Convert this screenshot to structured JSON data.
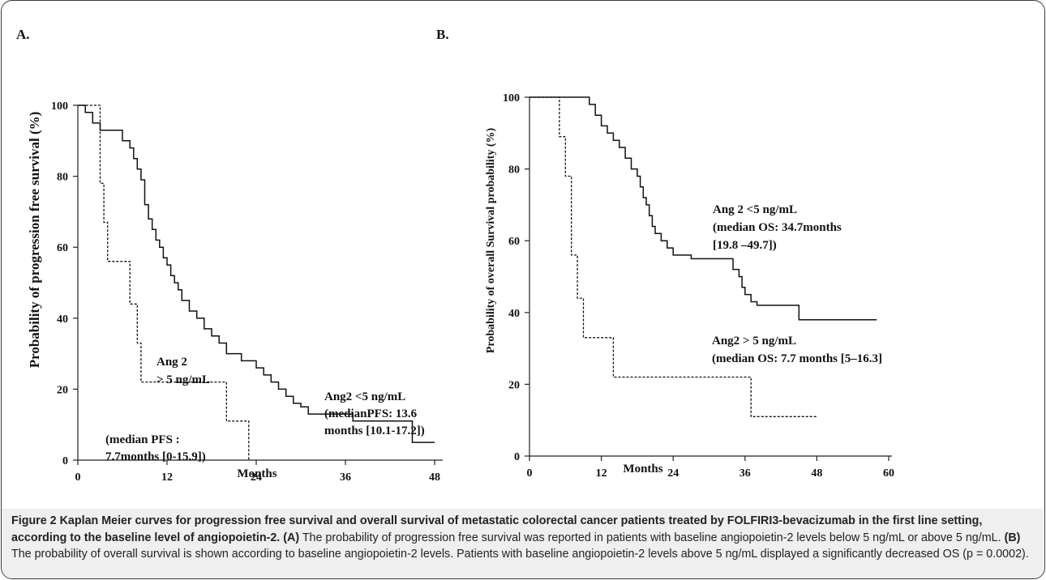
{
  "figure": {
    "caption_title": "Figure 2 Kaplan Meier curves for progression free survival and overall survival of metastatic colorectal cancer patients treated by FOLFIRI3-bevacizumab in the first line setting, according to the baseline level of angiopoietin-2.",
    "caption_a_label": "(A)",
    "caption_a_text": "The probability of progression free survival was reported in patients with baseline angiopoietin-2 levels below 5 ng/mL or above 5 ng/mL.",
    "caption_b_label": "(B)",
    "caption_b_text": "The probability of overall survival is shown according to baseline angiopoietin-2 levels. Patients with baseline angiopoietin-2 levels above 5 ng/mL displayed a significantly decreased OS (p = 0.0002)."
  },
  "chart_data": [
    {
      "type": "line",
      "panel_label": "A.",
      "xlabel": "Months",
      "ylabel": "Probability of progression free survival (%)",
      "xlim": [
        0,
        48
      ],
      "ylim": [
        0,
        100
      ],
      "xticks": [
        0,
        12,
        24,
        36,
        48
      ],
      "yticks": [
        0,
        20,
        40,
        60,
        80,
        100
      ],
      "step": true,
      "series": [
        {
          "style": "solid",
          "x": [
            0,
            1,
            2,
            3,
            5,
            6,
            7,
            7.5,
            8,
            8.5,
            9,
            9.5,
            10,
            10.5,
            11,
            11.5,
            12,
            12.5,
            13,
            13.5,
            14,
            15,
            16,
            17,
            18,
            19,
            20,
            22,
            24,
            25,
            26,
            27,
            28,
            29,
            30,
            31,
            33,
            37,
            45,
            48
          ],
          "y": [
            100,
            98,
            95,
            93,
            93,
            90,
            88,
            85,
            82,
            79,
            72,
            68,
            65,
            62,
            60,
            57,
            55,
            52,
            50,
            48,
            45,
            42,
            40,
            37,
            35,
            33,
            30,
            28,
            26,
            24,
            22,
            20,
            18,
            16,
            15,
            13,
            13,
            11,
            5,
            5
          ]
        },
        {
          "style": "dashed",
          "x": [
            0,
            2.5,
            3,
            3.5,
            4,
            7,
            8,
            8.5,
            9,
            20,
            21,
            23
          ],
          "y": [
            100,
            100,
            78,
            67,
            56,
            44,
            33,
            22,
            22,
            11,
            11,
            0
          ]
        }
      ],
      "annotations": [
        {
          "lines": [
            "Ang2 <5 ng/mL",
            "(medianPFS: 13.6",
            "months [10.1-17.2])"
          ]
        },
        {
          "lines": [
            "Ang 2",
            "> 5 ng/mL"
          ]
        },
        {
          "lines": [
            "(median PFS :",
            "7.7months [0-15.9])"
          ]
        }
      ]
    },
    {
      "type": "line",
      "panel_label": "B.",
      "xlabel": "Months",
      "ylabel": "Probability of overall Survival probability (%)",
      "xlim": [
        0,
        60
      ],
      "ylim": [
        0,
        100
      ],
      "xticks": [
        0,
        12,
        24,
        36,
        48,
        60
      ],
      "yticks": [
        0,
        20,
        40,
        60,
        80,
        100
      ],
      "step": true,
      "series": [
        {
          "style": "solid",
          "x": [
            0,
            9,
            10,
            11,
            12,
            13,
            14,
            15,
            16,
            17,
            18,
            18.5,
            19,
            19.5,
            20,
            20.5,
            21,
            22,
            23,
            24,
            27,
            33,
            34,
            35,
            35.5,
            36,
            37,
            38,
            45,
            58
          ],
          "y": [
            100,
            100,
            98,
            95,
            92,
            90,
            88,
            86,
            83,
            80,
            78,
            75,
            72,
            70,
            67,
            64,
            62,
            60,
            58,
            56,
            55,
            55,
            52,
            50,
            47,
            45,
            43,
            42,
            38,
            38
          ]
        },
        {
          "style": "dashed",
          "x": [
            0,
            4,
            5,
            6,
            7,
            8,
            9,
            14,
            37,
            48
          ],
          "y": [
            100,
            100,
            89,
            78,
            56,
            44,
            33,
            22,
            11,
            11
          ]
        }
      ],
      "annotations": [
        {
          "lines": [
            "Ang 2 <5 ng/mL",
            "(median OS: 34.7months",
            "[19.8 –49.7])"
          ]
        },
        {
          "lines": [
            "Ang2 > 5 ng/mL",
            "(median OS: 7.7 months  [5–16.3]"
          ]
        }
      ]
    }
  ]
}
